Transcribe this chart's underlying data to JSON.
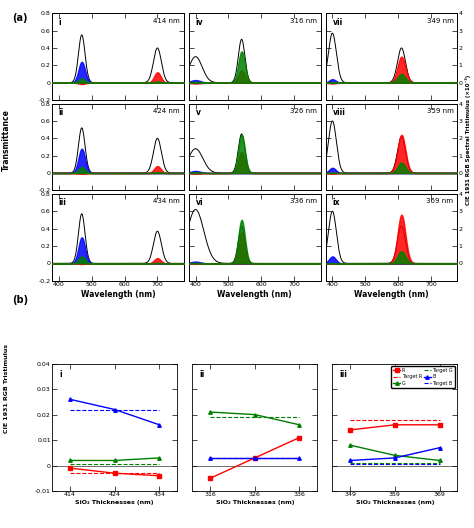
{
  "panel_a_labels": [
    "i",
    "ii",
    "iii",
    "iv",
    "v",
    "vi",
    "vii",
    "viii",
    "ix"
  ],
  "panel_a_nm_labels": [
    "414 nm",
    "424 nm",
    "434 nm",
    "316 nm",
    "326 nm",
    "336 nm",
    "349 nm",
    "359 nm",
    "369 nm"
  ],
  "transmittance_ylim": [
    -0.2,
    0.8
  ],
  "tristimulus_ylim_scaled": [
    -1,
    4
  ],
  "wavelength_xlim": [
    380,
    780
  ],
  "panel_b_ylim": [
    -0.01,
    0.04
  ],
  "panel_b_groups": [
    {
      "label": "i",
      "x_ticks": [
        414,
        424,
        434
      ],
      "x_label": "SiO₂ Thicknesses (nm)",
      "R_solid": [
        -0.001,
        -0.003,
        -0.004
      ],
      "G_solid": [
        0.002,
        0.002,
        0.003
      ],
      "B_solid": [
        0.026,
        0.022,
        0.016
      ],
      "R_target": [
        -0.003,
        -0.003,
        -0.003
      ],
      "G_target": [
        0.0005,
        0.0005,
        0.0005
      ],
      "B_target": [
        0.022,
        0.022,
        0.022
      ]
    },
    {
      "label": "ii",
      "x_ticks": [
        316,
        326,
        336
      ],
      "x_label": "SiO₂ Thicknesses (nm)",
      "R_solid": [
        -0.005,
        0.003,
        0.011
      ],
      "G_solid": [
        0.021,
        0.02,
        0.016
      ],
      "B_solid": [
        0.003,
        0.003,
        0.003
      ],
      "R_target": [
        0.003,
        0.003,
        0.003
      ],
      "G_target": [
        0.019,
        0.019,
        0.019
      ],
      "B_target": [
        0.003,
        0.003,
        0.003
      ]
    },
    {
      "label": "iii",
      "x_ticks": [
        349,
        359,
        369
      ],
      "x_label": "SiO₂ Thicknesses (nm)",
      "R_solid": [
        0.014,
        0.016,
        0.016
      ],
      "G_solid": [
        0.008,
        0.004,
        0.002
      ],
      "B_solid": [
        0.002,
        0.003,
        0.007
      ],
      "R_target": [
        0.018,
        0.018,
        0.018
      ],
      "G_target": [
        0.001,
        0.001,
        0.001
      ],
      "B_target": [
        0.0005,
        0.0005,
        0.0005
      ]
    }
  ],
  "subplot_configs": [
    {
      "trans_peaks": [
        {
          "mu": 470,
          "sig": 10,
          "amp": 0.55
        },
        {
          "mu": 700,
          "sig": 12,
          "amp": 0.4
        }
      ],
      "tris_r": [
        {
          "mu": 700,
          "sig": 10,
          "amp": 0.6
        },
        {
          "mu": 470,
          "sig": 10,
          "amp": -0.08
        }
      ],
      "tris_g": [
        {
          "mu": 470,
          "sig": 10,
          "amp": 0.25
        },
        {
          "mu": 700,
          "sig": 10,
          "amp": 0.08
        }
      ],
      "tris_b": [
        {
          "mu": 470,
          "sig": 10,
          "amp": 1.2
        }
      ]
    },
    {
      "trans_peaks": [
        {
          "mu": 470,
          "sig": 10,
          "amp": 0.52
        },
        {
          "mu": 700,
          "sig": 12,
          "amp": 0.4
        }
      ],
      "tris_r": [
        {
          "mu": 700,
          "sig": 10,
          "amp": 0.4
        },
        {
          "mu": 470,
          "sig": 10,
          "amp": -0.05
        }
      ],
      "tris_g": [
        {
          "mu": 470,
          "sig": 10,
          "amp": 0.35
        },
        {
          "mu": 700,
          "sig": 10,
          "amp": 0.06
        }
      ],
      "tris_b": [
        {
          "mu": 470,
          "sig": 10,
          "amp": 1.4
        }
      ]
    },
    {
      "trans_peaks": [
        {
          "mu": 470,
          "sig": 10,
          "amp": 0.57
        },
        {
          "mu": 700,
          "sig": 12,
          "amp": 0.37
        }
      ],
      "tris_r": [
        {
          "mu": 700,
          "sig": 10,
          "amp": 0.3
        },
        {
          "mu": 470,
          "sig": 10,
          "amp": -0.04
        }
      ],
      "tris_g": [
        {
          "mu": 470,
          "sig": 10,
          "amp": 0.4
        },
        {
          "mu": 700,
          "sig": 10,
          "amp": 0.04
        }
      ],
      "tris_b": [
        {
          "mu": 470,
          "sig": 10,
          "amp": 1.5
        }
      ]
    },
    {
      "trans_peaks": [
        {
          "mu": 400,
          "sig": 20,
          "amp": 0.3
        },
        {
          "mu": 540,
          "sig": 10,
          "amp": 0.5
        }
      ],
      "tris_r": [
        {
          "mu": 540,
          "sig": 10,
          "amp": 0.7
        },
        {
          "mu": 400,
          "sig": 15,
          "amp": -0.05
        }
      ],
      "tris_g": [
        {
          "mu": 540,
          "sig": 10,
          "amp": 1.8
        },
        {
          "mu": 400,
          "sig": 15,
          "amp": 0.05
        }
      ],
      "tris_b": [
        {
          "mu": 400,
          "sig": 15,
          "amp": 0.15
        }
      ]
    },
    {
      "trans_peaks": [
        {
          "mu": 400,
          "sig": 22,
          "amp": 0.28
        },
        {
          "mu": 540,
          "sig": 10,
          "amp": 0.45
        }
      ],
      "tris_r": [
        {
          "mu": 540,
          "sig": 10,
          "amp": 1.2
        },
        {
          "mu": 400,
          "sig": 15,
          "amp": -0.04
        }
      ],
      "tris_g": [
        {
          "mu": 540,
          "sig": 10,
          "amp": 2.2
        },
        {
          "mu": 400,
          "sig": 15,
          "amp": 0.04
        }
      ],
      "tris_b": [
        {
          "mu": 400,
          "sig": 15,
          "amp": 0.12
        }
      ]
    },
    {
      "trans_peaks": [
        {
          "mu": 400,
          "sig": 25,
          "amp": 0.62
        },
        {
          "mu": 540,
          "sig": 10,
          "amp": 0.42
        }
      ],
      "tris_r": [
        {
          "mu": 540,
          "sig": 10,
          "amp": 1.8
        },
        {
          "mu": 400,
          "sig": 15,
          "amp": -0.03
        }
      ],
      "tris_g": [
        {
          "mu": 540,
          "sig": 10,
          "amp": 2.5
        },
        {
          "mu": 400,
          "sig": 15,
          "amp": 0.03
        }
      ],
      "tris_b": [
        {
          "mu": 400,
          "sig": 15,
          "amp": 0.1
        }
      ]
    },
    {
      "trans_peaks": [
        {
          "mu": 400,
          "sig": 12,
          "amp": 0.57
        },
        {
          "mu": 610,
          "sig": 12,
          "amp": 0.4
        }
      ],
      "tris_r": [
        {
          "mu": 610,
          "sig": 12,
          "amp": 1.5
        },
        {
          "mu": 400,
          "sig": 10,
          "amp": -0.05
        }
      ],
      "tris_g": [
        {
          "mu": 610,
          "sig": 12,
          "amp": 0.5
        },
        {
          "mu": 400,
          "sig": 10,
          "amp": 0.04
        }
      ],
      "tris_b": [
        {
          "mu": 400,
          "sig": 10,
          "amp": 0.2
        }
      ]
    },
    {
      "trans_peaks": [
        {
          "mu": 400,
          "sig": 12,
          "amp": 0.6
        },
        {
          "mu": 610,
          "sig": 12,
          "amp": 0.42
        }
      ],
      "tris_r": [
        {
          "mu": 610,
          "sig": 12,
          "amp": 2.2
        },
        {
          "mu": 400,
          "sig": 10,
          "amp": -0.04
        }
      ],
      "tris_g": [
        {
          "mu": 610,
          "sig": 12,
          "amp": 0.6
        },
        {
          "mu": 400,
          "sig": 10,
          "amp": 0.03
        }
      ],
      "tris_b": [
        {
          "mu": 400,
          "sig": 10,
          "amp": 0.3
        }
      ]
    },
    {
      "trans_peaks": [
        {
          "mu": 400,
          "sig": 12,
          "amp": 0.6
        },
        {
          "mu": 610,
          "sig": 12,
          "amp": 0.43
        }
      ],
      "tris_r": [
        {
          "mu": 610,
          "sig": 12,
          "amp": 2.8
        },
        {
          "mu": 400,
          "sig": 10,
          "amp": -0.03
        }
      ],
      "tris_g": [
        {
          "mu": 610,
          "sig": 12,
          "amp": 0.7
        },
        {
          "mu": 400,
          "sig": 10,
          "amp": 0.02
        }
      ],
      "tris_b": [
        {
          "mu": 400,
          "sig": 10,
          "amp": 0.4
        }
      ]
    }
  ],
  "ylabel_a_left": "Transmittance",
  "ylabel_a_right": "CIE 1931 RGB Spectral Tristimulus (×10⁻³)",
  "ylabel_b": "CIE 1931 RGB Tristimulus",
  "xlabel_a": "Wavelength (nm)",
  "panel_a_tag": "(a)",
  "panel_b_tag": "(b)"
}
